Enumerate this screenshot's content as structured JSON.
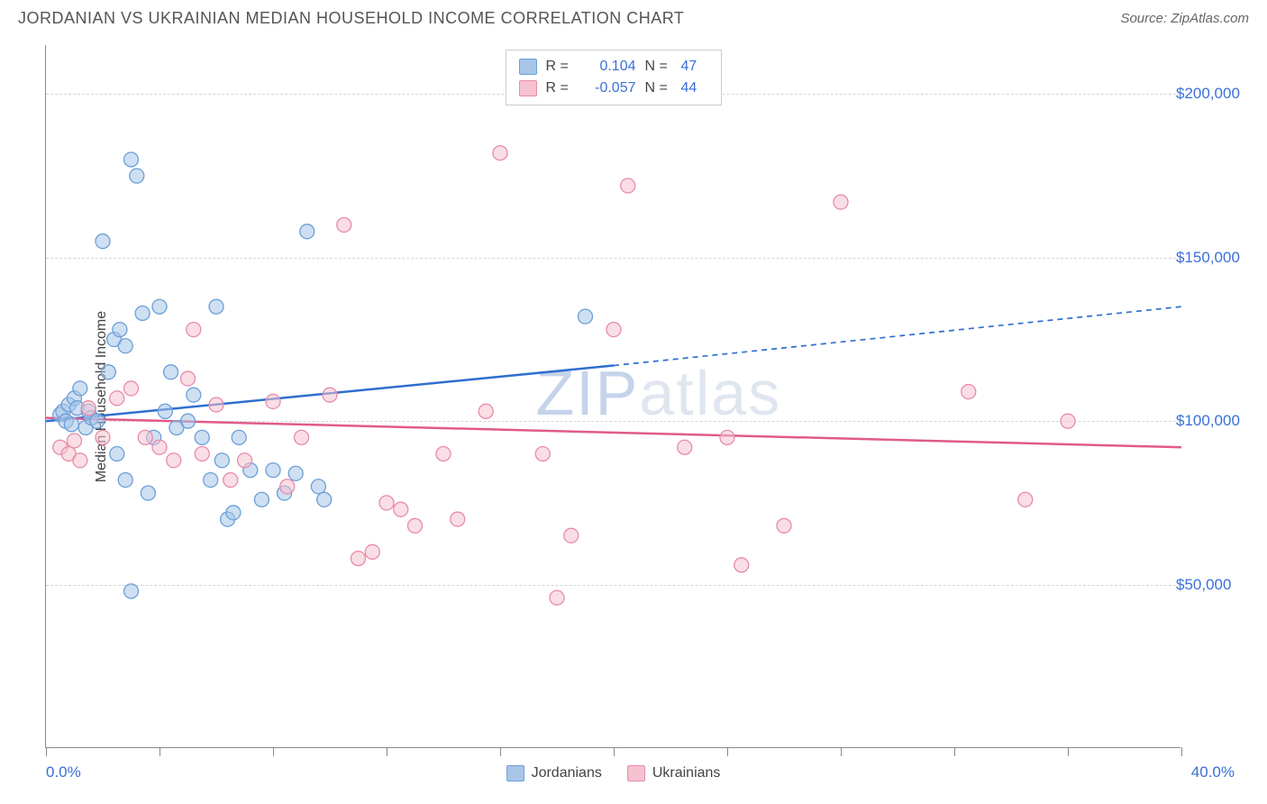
{
  "title": "JORDANIAN VS UKRAINIAN MEDIAN HOUSEHOLD INCOME CORRELATION CHART",
  "source": "Source: ZipAtlas.com",
  "y_axis_label": "Median Household Income",
  "watermark_part1": "ZIP",
  "watermark_part2": "atlas",
  "chart": {
    "type": "scatter",
    "xlim": [
      0,
      40
    ],
    "ylim": [
      0,
      215000
    ],
    "x_ticks": [
      0,
      4,
      8,
      12,
      16,
      20,
      24,
      28,
      32,
      36,
      40
    ],
    "x_tick_labels": {
      "0": "0.0%",
      "40": "40.0%"
    },
    "y_gridlines": [
      50000,
      100000,
      150000,
      200000
    ],
    "y_tick_labels": [
      "$50,000",
      "$100,000",
      "$150,000",
      "$200,000"
    ],
    "background_color": "#ffffff",
    "grid_color": "#d5d5d5",
    "axis_color": "#888888",
    "marker_radius": 8,
    "marker_opacity": 0.55,
    "series": [
      {
        "name": "Jordanians",
        "color_fill": "#a8c5e8",
        "color_stroke": "#6a9fd8",
        "R": "0.104",
        "N": "47",
        "trend": {
          "x1": 0,
          "y1": 100000,
          "x2": 20,
          "y2": 117000,
          "x2_ext": 40,
          "y2_ext": 135000,
          "color": "#2f6fd0",
          "width": 2.5,
          "dash_ext": "6 5"
        },
        "points": [
          [
            0.5,
            102000
          ],
          [
            0.6,
            103000
          ],
          [
            0.7,
            100000
          ],
          [
            0.8,
            105000
          ],
          [
            0.9,
            99000
          ],
          [
            1.0,
            107000
          ],
          [
            1.1,
            104000
          ],
          [
            1.2,
            110000
          ],
          [
            1.4,
            98000
          ],
          [
            1.5,
            103000
          ],
          [
            1.6,
            101000
          ],
          [
            1.8,
            100000
          ],
          [
            2.0,
            155000
          ],
          [
            2.2,
            115000
          ],
          [
            2.4,
            125000
          ],
          [
            2.6,
            128000
          ],
          [
            2.8,
            123000
          ],
          [
            3.0,
            180000
          ],
          [
            3.2,
            175000
          ],
          [
            3.4,
            133000
          ],
          [
            3.6,
            78000
          ],
          [
            3.8,
            95000
          ],
          [
            4.0,
            135000
          ],
          [
            4.2,
            103000
          ],
          [
            3.0,
            48000
          ],
          [
            2.5,
            90000
          ],
          [
            2.8,
            82000
          ],
          [
            4.4,
            115000
          ],
          [
            4.6,
            98000
          ],
          [
            5.0,
            100000
          ],
          [
            5.2,
            108000
          ],
          [
            5.5,
            95000
          ],
          [
            5.8,
            82000
          ],
          [
            6.0,
            135000
          ],
          [
            6.2,
            88000
          ],
          [
            6.4,
            70000
          ],
          [
            6.6,
            72000
          ],
          [
            6.8,
            95000
          ],
          [
            7.2,
            85000
          ],
          [
            7.6,
            76000
          ],
          [
            8.0,
            85000
          ],
          [
            8.4,
            78000
          ],
          [
            8.8,
            84000
          ],
          [
            9.2,
            158000
          ],
          [
            9.6,
            80000
          ],
          [
            9.8,
            76000
          ],
          [
            19.0,
            132000
          ]
        ]
      },
      {
        "name": "Ukrainians",
        "color_fill": "#f5c2d0",
        "color_stroke": "#e88ba8",
        "R": "-0.057",
        "N": "44",
        "trend": {
          "x1": 0,
          "y1": 101000,
          "x2": 40,
          "y2": 92000,
          "color": "#e05a8a",
          "width": 2.5
        },
        "points": [
          [
            0.5,
            92000
          ],
          [
            0.8,
            90000
          ],
          [
            1.0,
            94000
          ],
          [
            1.2,
            88000
          ],
          [
            1.5,
            104000
          ],
          [
            2.0,
            95000
          ],
          [
            2.5,
            107000
          ],
          [
            3.0,
            110000
          ],
          [
            3.5,
            95000
          ],
          [
            4.0,
            92000
          ],
          [
            4.5,
            88000
          ],
          [
            5.0,
            113000
          ],
          [
            5.2,
            128000
          ],
          [
            5.5,
            90000
          ],
          [
            6.0,
            105000
          ],
          [
            6.5,
            82000
          ],
          [
            7.0,
            88000
          ],
          [
            8.0,
            106000
          ],
          [
            8.5,
            80000
          ],
          [
            9.0,
            95000
          ],
          [
            10.0,
            108000
          ],
          [
            10.5,
            160000
          ],
          [
            11.0,
            58000
          ],
          [
            11.5,
            60000
          ],
          [
            12.0,
            75000
          ],
          [
            12.5,
            73000
          ],
          [
            13.0,
            68000
          ],
          [
            14.0,
            90000
          ],
          [
            14.5,
            70000
          ],
          [
            15.5,
            103000
          ],
          [
            16.0,
            182000
          ],
          [
            17.5,
            90000
          ],
          [
            18.0,
            46000
          ],
          [
            18.5,
            65000
          ],
          [
            20.0,
            128000
          ],
          [
            20.5,
            172000
          ],
          [
            22.5,
            92000
          ],
          [
            24.0,
            95000
          ],
          [
            24.5,
            56000
          ],
          [
            26.0,
            68000
          ],
          [
            28.0,
            167000
          ],
          [
            32.5,
            109000
          ],
          [
            34.5,
            76000
          ],
          [
            36.0,
            100000
          ]
        ]
      }
    ]
  },
  "legend_top": {
    "R_label": "R =",
    "N_label": "N ="
  }
}
